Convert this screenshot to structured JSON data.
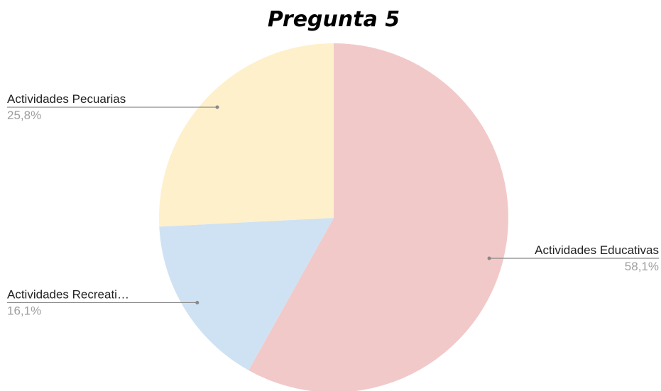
{
  "chart_data": {
    "type": "pie",
    "title": "Pregunta 5",
    "slices": [
      {
        "label": "Actividades Educativas",
        "value": 58.1,
        "value_label": "58,1%",
        "color": "#f2c9c9",
        "label_side": "right"
      },
      {
        "label": "Actividades Recreati…",
        "value": 16.1,
        "value_label": "16,1%",
        "color": "#cfe2f3",
        "label_side": "left"
      },
      {
        "label": "Actividades Pecuarias",
        "value": 25.8,
        "value_label": "25,8%",
        "color": "#fff0cc",
        "label_side": "left"
      }
    ],
    "start_angle": "12 o'clock",
    "direction": "clockwise",
    "legend": "none",
    "leader_line_color": "#888888"
  }
}
